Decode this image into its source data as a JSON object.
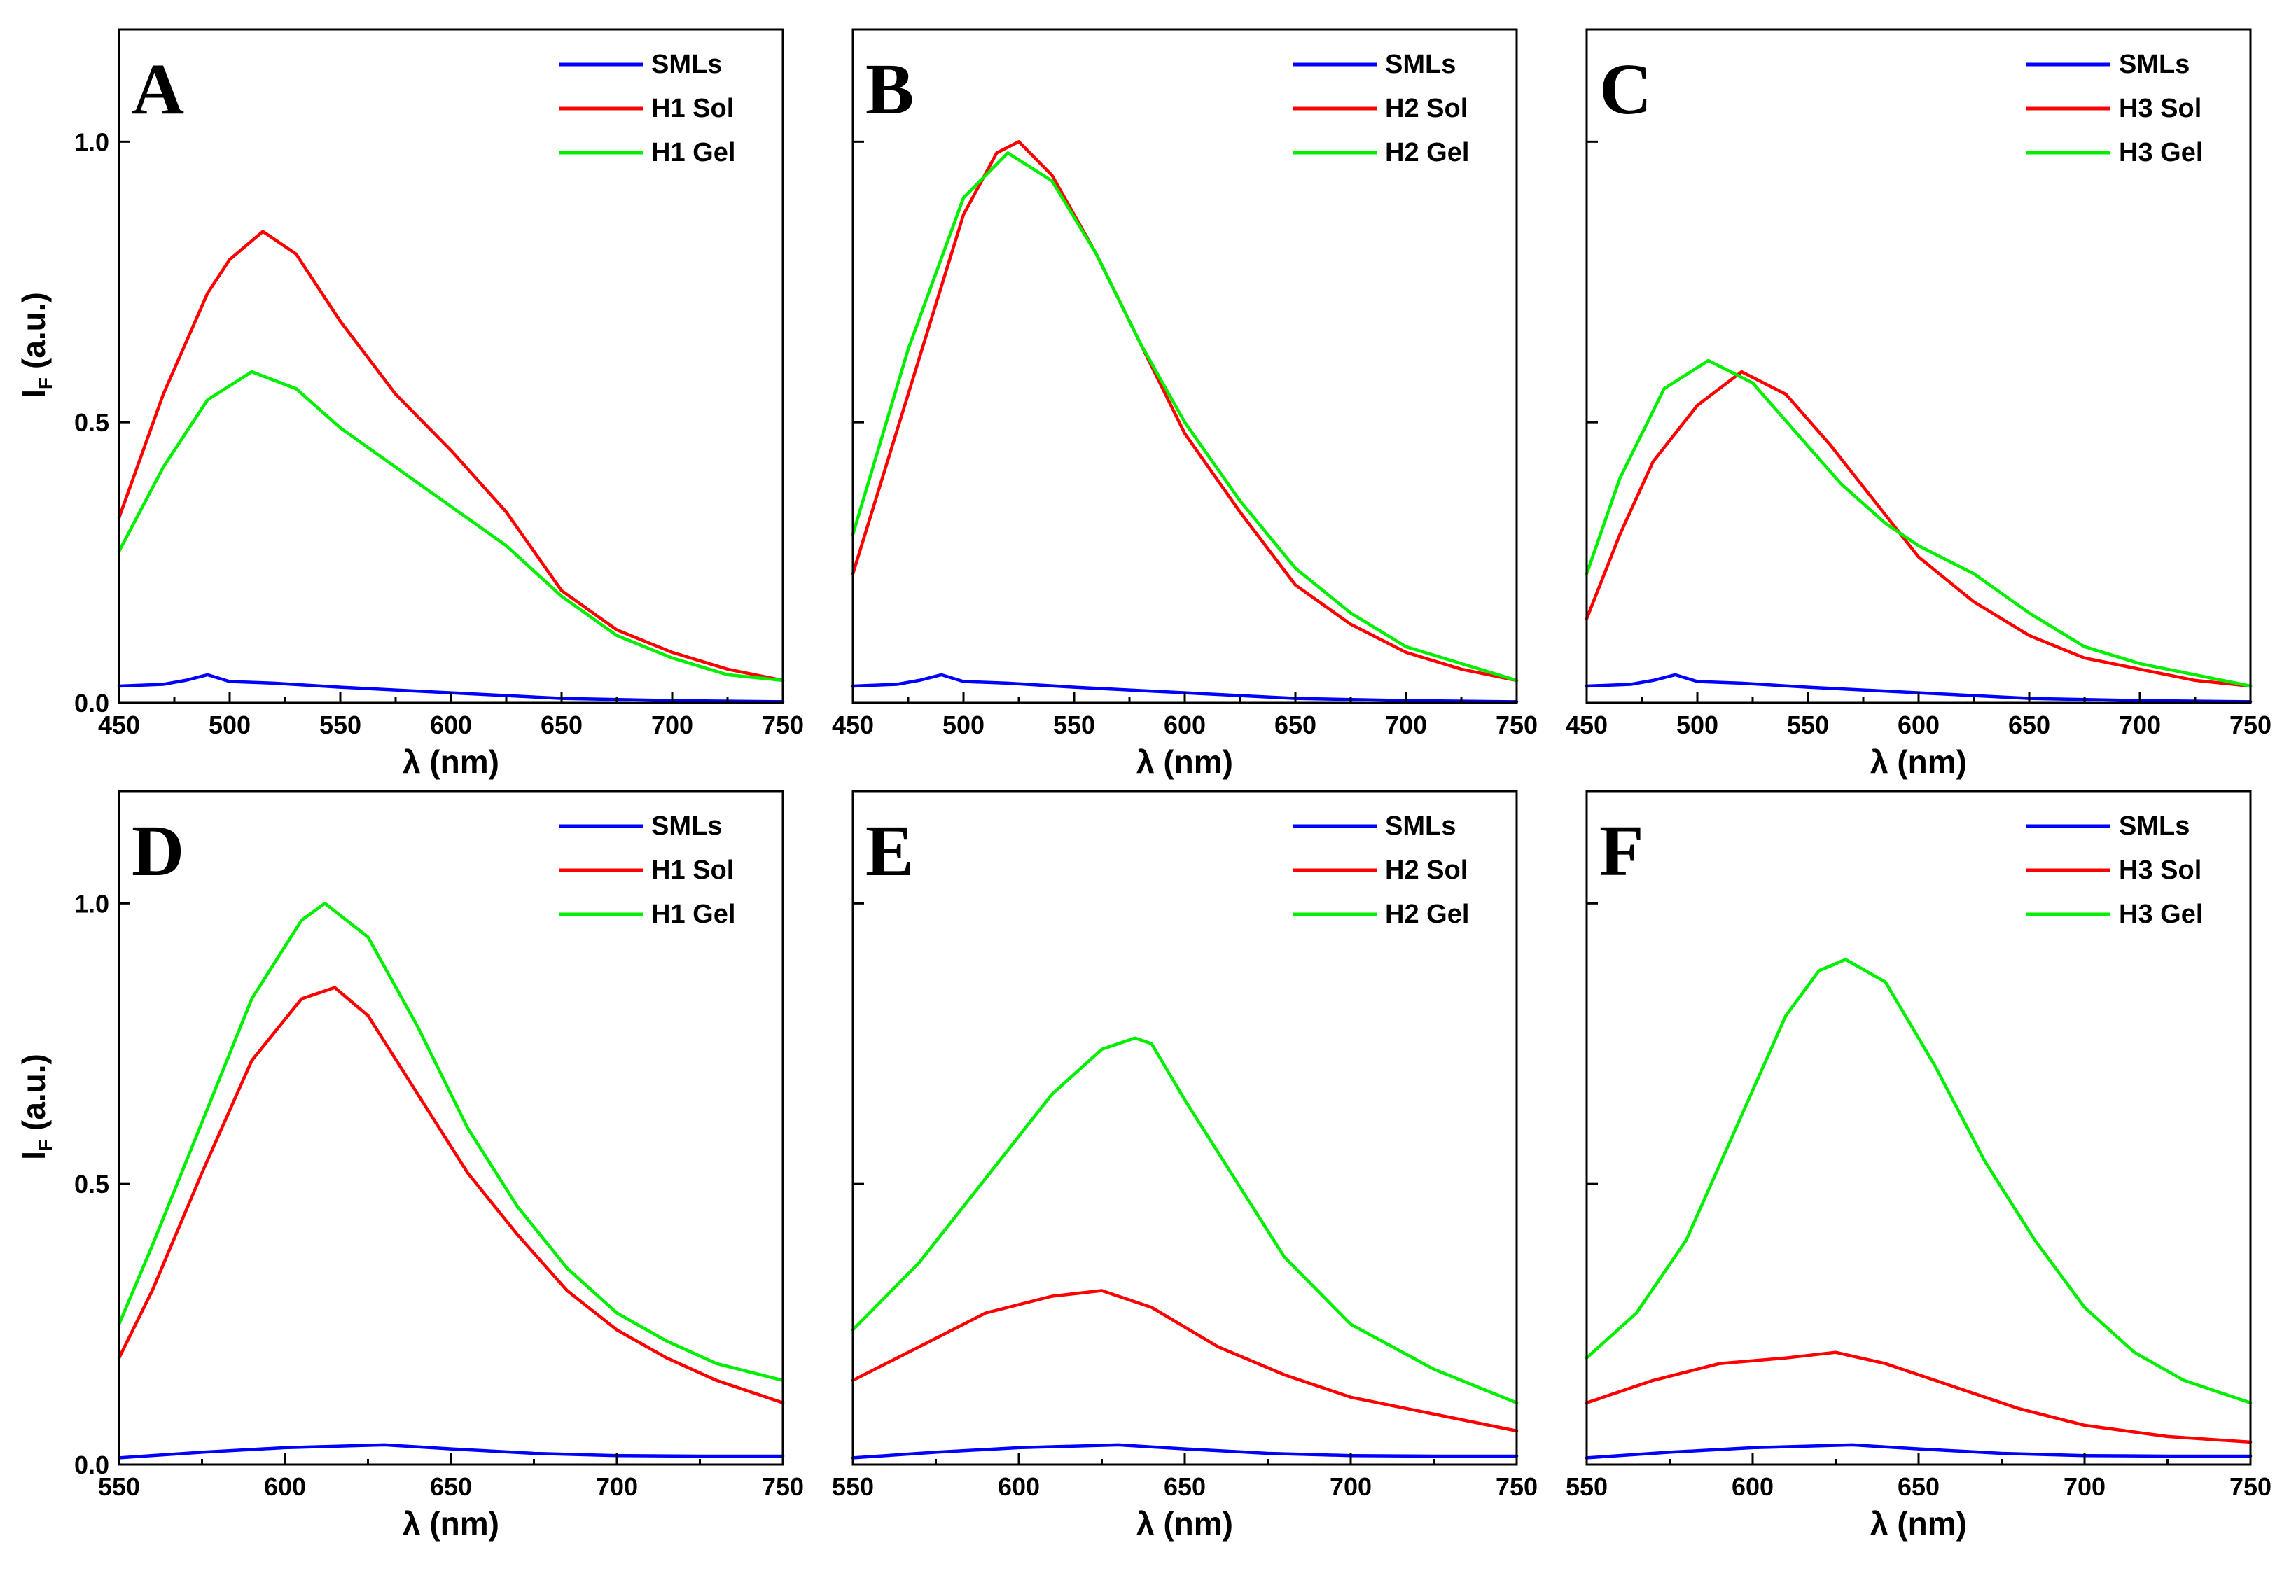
{
  "chart_data": [
    {
      "type": "line",
      "panel": "A",
      "xlabel": "λ (nm)",
      "ylabel": "I",
      "ylabel_sub": "F",
      "ylabel_unit": "(a.u.)",
      "xlim": [
        450,
        750
      ],
      "ylim": [
        0,
        1.2
      ],
      "xticks": [
        450,
        500,
        550,
        600,
        650,
        700,
        750
      ],
      "yticks": [
        0.0,
        0.5,
        1.0
      ],
      "ytick_labels": [
        "0.0",
        "0.5",
        "1.0"
      ],
      "legend": [
        "SMLs",
        "H1 Sol",
        "H1 Gel"
      ],
      "series": [
        {
          "name": "SMLs",
          "color": "#0000ff",
          "x": [
            450,
            470,
            480,
            490,
            500,
            520,
            550,
            600,
            650,
            700,
            750
          ],
          "y": [
            0.03,
            0.033,
            0.04,
            0.05,
            0.038,
            0.035,
            0.028,
            0.018,
            0.008,
            0.004,
            0.002
          ]
        },
        {
          "name": "H1 Sol",
          "color": "#ff0000",
          "x": [
            450,
            470,
            490,
            500,
            515,
            530,
            550,
            575,
            600,
            625,
            650,
            675,
            700,
            725,
            750
          ],
          "y": [
            0.33,
            0.55,
            0.73,
            0.79,
            0.84,
            0.8,
            0.68,
            0.55,
            0.45,
            0.34,
            0.2,
            0.13,
            0.09,
            0.06,
            0.04
          ]
        },
        {
          "name": "H1 Gel",
          "color": "#00ee00",
          "x": [
            450,
            470,
            490,
            510,
            530,
            550,
            575,
            600,
            625,
            650,
            675,
            700,
            725,
            750
          ],
          "y": [
            0.27,
            0.42,
            0.54,
            0.59,
            0.56,
            0.49,
            0.42,
            0.35,
            0.28,
            0.19,
            0.12,
            0.08,
            0.05,
            0.04
          ]
        }
      ]
    },
    {
      "type": "line",
      "panel": "B",
      "xlabel": "λ (nm)",
      "xlim": [
        450,
        750
      ],
      "ylim": [
        0,
        1.2
      ],
      "xticks": [
        450,
        500,
        550,
        600,
        650,
        700,
        750
      ],
      "yticks": [
        0.0,
        0.5,
        1.0
      ],
      "legend": [
        "SMLs",
        "H2 Sol",
        "H2 Gel"
      ],
      "series": [
        {
          "name": "SMLs",
          "color": "#0000ff",
          "x": [
            450,
            470,
            480,
            490,
            500,
            520,
            550,
            600,
            650,
            700,
            750
          ],
          "y": [
            0.03,
            0.033,
            0.04,
            0.05,
            0.038,
            0.035,
            0.028,
            0.018,
            0.008,
            0.004,
            0.002
          ]
        },
        {
          "name": "H2 Sol",
          "color": "#ff0000",
          "x": [
            450,
            475,
            500,
            515,
            525,
            540,
            560,
            580,
            600,
            625,
            650,
            675,
            700,
            725,
            750
          ],
          "y": [
            0.23,
            0.55,
            0.87,
            0.98,
            1.0,
            0.94,
            0.8,
            0.64,
            0.48,
            0.34,
            0.21,
            0.14,
            0.09,
            0.06,
            0.04
          ]
        },
        {
          "name": "H2 Gel",
          "color": "#00ee00",
          "x": [
            450,
            475,
            500,
            520,
            540,
            560,
            580,
            600,
            625,
            650,
            675,
            700,
            725,
            750
          ],
          "y": [
            0.3,
            0.63,
            0.9,
            0.98,
            0.93,
            0.8,
            0.64,
            0.5,
            0.36,
            0.24,
            0.16,
            0.1,
            0.07,
            0.04
          ]
        }
      ]
    },
    {
      "type": "line",
      "panel": "C",
      "xlabel": "λ (nm)",
      "xlim": [
        450,
        750
      ],
      "ylim": [
        0,
        1.2
      ],
      "xticks": [
        450,
        500,
        550,
        600,
        650,
        700,
        750
      ],
      "yticks": [
        0.0,
        0.5,
        1.0
      ],
      "legend": [
        "SMLs",
        "H3 Sol",
        "H3 Gel"
      ],
      "series": [
        {
          "name": "SMLs",
          "color": "#0000ff",
          "x": [
            450,
            470,
            480,
            490,
            500,
            520,
            550,
            600,
            650,
            700,
            750
          ],
          "y": [
            0.03,
            0.033,
            0.04,
            0.05,
            0.038,
            0.035,
            0.028,
            0.018,
            0.008,
            0.004,
            0.002
          ]
        },
        {
          "name": "H3 Sol",
          "color": "#ff0000",
          "x": [
            450,
            465,
            480,
            500,
            520,
            540,
            560,
            580,
            600,
            625,
            650,
            675,
            700,
            725,
            750
          ],
          "y": [
            0.15,
            0.3,
            0.43,
            0.53,
            0.59,
            0.55,
            0.46,
            0.36,
            0.26,
            0.18,
            0.12,
            0.08,
            0.06,
            0.04,
            0.03
          ]
        },
        {
          "name": "H3 Gel",
          "color": "#00ee00",
          "x": [
            450,
            465,
            485,
            505,
            525,
            545,
            565,
            585,
            600,
            625,
            650,
            675,
            700,
            725,
            750
          ],
          "y": [
            0.23,
            0.4,
            0.56,
            0.61,
            0.57,
            0.48,
            0.39,
            0.32,
            0.28,
            0.23,
            0.16,
            0.1,
            0.07,
            0.05,
            0.03
          ]
        }
      ]
    },
    {
      "type": "line",
      "panel": "D",
      "xlabel": "λ (nm)",
      "ylabel": "I",
      "ylabel_sub": "F",
      "ylabel_unit": "(a.u.)",
      "xlim": [
        550,
        750
      ],
      "ylim": [
        0,
        1.2
      ],
      "xticks": [
        550,
        600,
        650,
        700,
        750
      ],
      "yticks": [
        0.0,
        0.5,
        1.0
      ],
      "ytick_labels": [
        "0.0",
        "0.5",
        "1.0"
      ],
      "legend": [
        "SMLs",
        "H1 Sol",
        "H1 Gel"
      ],
      "series": [
        {
          "name": "SMLs",
          "color": "#0000ff",
          "x": [
            550,
            575,
            600,
            630,
            650,
            675,
            700,
            725,
            750
          ],
          "y": [
            0.012,
            0.022,
            0.03,
            0.035,
            0.028,
            0.02,
            0.016,
            0.015,
            0.015
          ]
        },
        {
          "name": "H1 Sol",
          "color": "#ff0000",
          "x": [
            550,
            560,
            575,
            590,
            605,
            615,
            625,
            640,
            655,
            670,
            685,
            700,
            715,
            730,
            750
          ],
          "y": [
            0.19,
            0.31,
            0.52,
            0.72,
            0.83,
            0.85,
            0.8,
            0.66,
            0.52,
            0.41,
            0.31,
            0.24,
            0.19,
            0.15,
            0.11
          ]
        },
        {
          "name": "H1 Gel",
          "color": "#00ee00",
          "x": [
            550,
            560,
            575,
            590,
            605,
            612,
            625,
            640,
            655,
            670,
            685,
            700,
            715,
            730,
            750
          ],
          "y": [
            0.25,
            0.39,
            0.61,
            0.83,
            0.97,
            1.0,
            0.94,
            0.78,
            0.6,
            0.46,
            0.35,
            0.27,
            0.22,
            0.18,
            0.15
          ]
        }
      ]
    },
    {
      "type": "line",
      "panel": "E",
      "xlabel": "λ (nm)",
      "xlim": [
        550,
        750
      ],
      "ylim": [
        0,
        1.2
      ],
      "xticks": [
        550,
        600,
        650,
        700,
        750
      ],
      "yticks": [
        0.0,
        0.5,
        1.0
      ],
      "legend": [
        "SMLs",
        "H2 Sol",
        "H2 Gel"
      ],
      "series": [
        {
          "name": "SMLs",
          "color": "#0000ff",
          "x": [
            550,
            575,
            600,
            630,
            650,
            675,
            700,
            725,
            750
          ],
          "y": [
            0.012,
            0.022,
            0.03,
            0.035,
            0.028,
            0.02,
            0.016,
            0.015,
            0.015
          ]
        },
        {
          "name": "H2 Sol",
          "color": "#ff0000",
          "x": [
            550,
            570,
            590,
            610,
            625,
            640,
            660,
            680,
            700,
            725,
            750
          ],
          "y": [
            0.15,
            0.21,
            0.27,
            0.3,
            0.31,
            0.28,
            0.21,
            0.16,
            0.12,
            0.09,
            0.06
          ]
        },
        {
          "name": "H2 Gel",
          "color": "#00ee00",
          "x": [
            550,
            570,
            590,
            610,
            625,
            635,
            640,
            650,
            665,
            680,
            700,
            725,
            750
          ],
          "y": [
            0.24,
            0.36,
            0.51,
            0.66,
            0.74,
            0.76,
            0.75,
            0.65,
            0.51,
            0.37,
            0.25,
            0.17,
            0.11
          ]
        }
      ]
    },
    {
      "type": "line",
      "panel": "F",
      "xlabel": "λ (nm)",
      "xlim": [
        550,
        750
      ],
      "ylim": [
        0,
        1.2
      ],
      "xticks": [
        550,
        600,
        650,
        700,
        750
      ],
      "yticks": [
        0.0,
        0.5,
        1.0
      ],
      "legend": [
        "SMLs",
        "H3 Sol",
        "H3 Gel"
      ],
      "series": [
        {
          "name": "SMLs",
          "color": "#0000ff",
          "x": [
            550,
            575,
            600,
            630,
            650,
            675,
            700,
            725,
            750
          ],
          "y": [
            0.012,
            0.022,
            0.03,
            0.035,
            0.028,
            0.02,
            0.016,
            0.015,
            0.015
          ]
        },
        {
          "name": "H3 Sol",
          "color": "#ff0000",
          "x": [
            550,
            570,
            590,
            610,
            625,
            640,
            660,
            680,
            700,
            725,
            750
          ],
          "y": [
            0.11,
            0.15,
            0.18,
            0.19,
            0.2,
            0.18,
            0.14,
            0.1,
            0.07,
            0.05,
            0.04
          ]
        },
        {
          "name": "H3 Gel",
          "color": "#00ee00",
          "x": [
            550,
            565,
            580,
            595,
            610,
            620,
            628,
            640,
            655,
            670,
            685,
            700,
            715,
            730,
            750
          ],
          "y": [
            0.19,
            0.27,
            0.4,
            0.6,
            0.8,
            0.88,
            0.9,
            0.86,
            0.71,
            0.54,
            0.4,
            0.28,
            0.2,
            0.15,
            0.11
          ]
        }
      ]
    }
  ]
}
